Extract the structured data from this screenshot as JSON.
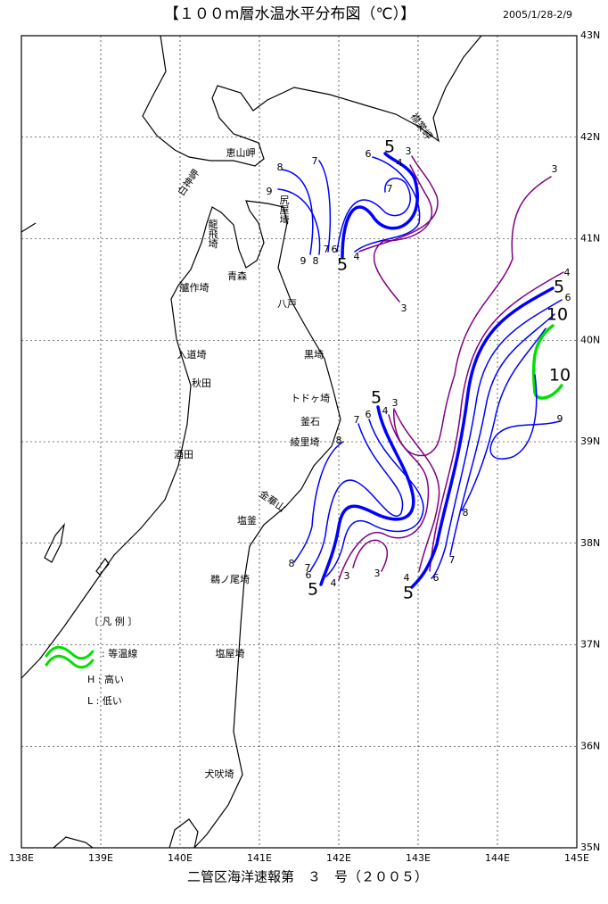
{
  "header": {
    "title": "【１００m層水温水平分布図（℃）】",
    "date": "2005/1/28-2/9"
  },
  "map": {
    "lon_labels": [
      "138E",
      "139E",
      "140E",
      "141E",
      "142E",
      "143E",
      "144E",
      "145E"
    ],
    "lat_labels": [
      "35N",
      "36N",
      "37N",
      "38N",
      "39N",
      "40N",
      "41N",
      "42N",
      "43N"
    ],
    "places": [
      "恵山岬",
      "白神岬",
      "尻屋埼",
      "龍飛埼",
      "青森",
      "艫作埼",
      "八戸",
      "入道埼",
      "黒埼",
      "秋田",
      "トドヶ埼",
      "釜石",
      "綾里埼",
      "酒田",
      "金華山",
      "塩釜",
      "鵜ノ尾埼",
      "塩屋埼",
      "犬吠埼",
      "襟裳岬"
    ],
    "contour_labels": [
      "5",
      "3",
      "6",
      "4",
      "8",
      "7",
      "9",
      "7",
      "3",
      "9",
      "8",
      "7",
      "6",
      "5",
      "4",
      "3",
      "4",
      "5",
      "6",
      "10",
      "10",
      "9",
      "5",
      "3",
      "4",
      "6",
      "7",
      "8",
      "8",
      "7",
      "6",
      "4",
      "5",
      "3",
      "3",
      "4",
      "8",
      "7",
      "6",
      "5"
    ]
  },
  "legend": {
    "title": "〔 凡 例 〕",
    "isotherm": ": 等温線",
    "high": "H : 高い",
    "low": "L : 低い"
  },
  "footer": "二管区海洋速報第　３　号（２００５）"
}
